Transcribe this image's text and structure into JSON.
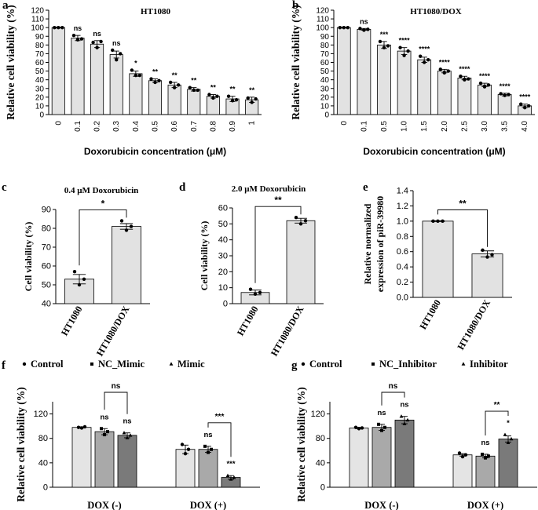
{
  "chart_data": [
    {
      "id": "a",
      "panel_label": "a",
      "type": "bar",
      "title": "HT1080",
      "xlabel": "Doxorubicin concentration (μM)",
      "ylabel": "Relative cell viability (%)",
      "ylim": [
        0,
        120
      ],
      "yticks": [
        0,
        10,
        20,
        30,
        40,
        50,
        60,
        70,
        80,
        90,
        100,
        110,
        120
      ],
      "categories": [
        "0",
        "0.1",
        "0.2",
        "0.3",
        "0.4",
        "0.5",
        "0.6",
        "0.7",
        "0.8",
        "0.9",
        "1"
      ],
      "values": [
        100,
        88,
        81,
        69,
        47,
        39,
        34,
        29,
        21,
        18,
        17
      ],
      "errors": [
        0.5,
        3,
        4,
        4,
        3,
        2,
        3,
        2,
        2,
        3,
        3
      ],
      "points": [
        [
          100,
          100,
          100
        ],
        [
          91,
          86,
          87
        ],
        [
          83,
          77,
          84
        ],
        [
          74,
          63,
          70
        ],
        [
          51,
          45,
          45
        ],
        [
          41,
          37,
          39
        ],
        [
          37,
          31,
          34
        ],
        [
          31,
          28,
          28
        ],
        [
          23,
          19,
          21
        ],
        [
          21,
          16,
          17
        ],
        [
          19,
          14,
          18
        ]
      ],
      "sig": [
        "",
        "ns",
        "ns",
        "ns",
        "*",
        "**",
        "**",
        "**",
        "**",
        "**",
        "**"
      ],
      "legend": []
    },
    {
      "id": "b",
      "panel_label": "b",
      "type": "bar",
      "title": "HT1080/DOX",
      "xlabel": "Doxorubicin concentration (μM)",
      "ylabel": "Relative cell viability (%)",
      "ylim": [
        0,
        120
      ],
      "yticks": [
        0,
        10,
        20,
        30,
        40,
        50,
        60,
        70,
        80,
        90,
        100,
        110,
        120
      ],
      "categories": [
        "0",
        "0.1",
        "0.5",
        "1.0",
        "1.5",
        "2.0",
        "2.5",
        "3.0",
        "3.5",
        "4.0"
      ],
      "values": [
        100,
        98,
        80,
        73,
        63,
        50,
        42,
        34,
        23,
        10
      ],
      "errors": [
        0.5,
        1,
        4,
        4,
        3,
        2,
        2,
        2,
        1.5,
        2
      ],
      "points": [
        [
          100,
          100,
          100
        ],
        [
          99,
          97,
          98
        ],
        [
          84,
          77,
          79
        ],
        [
          77,
          68,
          73
        ],
        [
          67,
          60,
          63
        ],
        [
          52,
          48,
          50
        ],
        [
          44,
          40,
          41
        ],
        [
          36,
          32,
          34
        ],
        [
          24,
          22,
          23
        ],
        [
          12,
          8,
          10
        ]
      ],
      "sig": [
        "",
        "ns",
        "***",
        "****",
        "****",
        "****",
        "****",
        "****",
        "****",
        "****"
      ],
      "legend": []
    },
    {
      "id": "c",
      "panel_label": "c",
      "type": "bar",
      "title": "0.4 μM Doxorubicin",
      "xlabel": "",
      "ylabel": "Cell viability (%)",
      "ylim": [
        40,
        90
      ],
      "yticks": [
        40,
        50,
        60,
        70,
        80,
        90
      ],
      "categories": [
        "HT1080",
        "HT1080/DOX"
      ],
      "values": [
        53,
        81
      ],
      "errors": [
        2.5,
        1.5
      ],
      "points": [
        [
          57,
          50,
          53
        ],
        [
          84,
          79,
          81
        ]
      ],
      "sig": [
        "",
        ""
      ],
      "brackets": [
        {
          "from": 0,
          "to": 1,
          "label": "*"
        }
      ],
      "legend": []
    },
    {
      "id": "d",
      "panel_label": "d",
      "type": "bar",
      "title": "2.0 μM Doxorubicin",
      "xlabel": "",
      "ylabel": "Cell viability (%)",
      "ylim": [
        0,
        60
      ],
      "yticks": [
        0,
        10,
        20,
        30,
        40,
        50,
        60
      ],
      "categories": [
        "HT1080",
        "HT1080/DOX"
      ],
      "values": [
        7,
        52
      ],
      "errors": [
        1.5,
        1.5
      ],
      "points": [
        [
          9,
          6,
          7
        ],
        [
          54,
          50,
          52
        ]
      ],
      "sig": [
        "",
        ""
      ],
      "brackets": [
        {
          "from": 0,
          "to": 1,
          "label": "**"
        }
      ],
      "legend": []
    },
    {
      "id": "e",
      "panel_label": "e",
      "type": "bar",
      "title": "",
      "xlabel": "",
      "ylabel": "Relative normalized expression of piR-39980",
      "ylim": [
        0,
        1.4
      ],
      "yticks": [
        "0.0",
        "0.2",
        "0.4",
        "0.6",
        "0.8",
        "1.0",
        "1.2",
        "1.4"
      ],
      "categories": [
        "HT1080",
        "HT1080/DOX"
      ],
      "values": [
        1.0,
        0.57
      ],
      "errors": [
        0.005,
        0.04
      ],
      "points": [
        [
          1.0,
          1.0,
          1.0
        ],
        [
          0.62,
          0.53,
          0.56
        ]
      ],
      "sig": [
        "",
        ""
      ],
      "brackets": [
        {
          "from": 0,
          "to": 1,
          "label": "**"
        }
      ],
      "legend": []
    },
    {
      "id": "f",
      "panel_label": "f",
      "type": "bar",
      "title": "",
      "xlabel": "",
      "ylabel": "Relative cell viability (%)",
      "ylim": [
        0,
        140
      ],
      "yticks": [
        0,
        40,
        80,
        120
      ],
      "categories": [
        "DOX (-)",
        "DOX (+)"
      ],
      "legend": [
        "Control",
        "NC_Mimic",
        "Mimic"
      ],
      "series": [
        {
          "name": "Control",
          "color": "#e4e4e4",
          "values": [
            98,
            62
          ],
          "errors": [
            1,
            7
          ],
          "points": [
            [
              98,
              97,
              99
            ],
            [
              70,
              55,
              62
            ]
          ],
          "sig": [
            "",
            ""
          ]
        },
        {
          "name": "NC_Mimic",
          "color": "#a9a9a9",
          "values": [
            91,
            62
          ],
          "errors": [
            5,
            5
          ],
          "points": [
            [
              96,
              86,
              91
            ],
            [
              67,
              57,
              62
            ]
          ],
          "sig": [
            "ns",
            "ns"
          ]
        },
        {
          "name": "Mimic",
          "color": "#7a7a7a",
          "values": [
            85,
            16
          ],
          "errors": [
            4,
            3
          ],
          "points": [
            [
              89,
              81,
              85
            ],
            [
              19,
              13,
              16
            ]
          ],
          "sig": [
            "ns",
            "***"
          ]
        }
      ],
      "brackets": [
        {
          "group": 0,
          "from": 1,
          "to": 2,
          "label": "ns"
        },
        {
          "group": 1,
          "from": 1,
          "to": 2,
          "label": "***"
        }
      ]
    },
    {
      "id": "g",
      "panel_label": "g",
      "type": "bar",
      "title": "",
      "xlabel": "",
      "ylabel": "Relative cell viability (%)",
      "ylim": [
        0,
        140
      ],
      "yticks": [
        0,
        40,
        80,
        120
      ],
      "categories": [
        "DOX (-)",
        "DOX (+)"
      ],
      "legend": [
        "Control",
        "NC_Inhibitor",
        "Inhibitor"
      ],
      "series": [
        {
          "name": "Control",
          "color": "#e4e4e4",
          "values": [
            97,
            53
          ],
          "errors": [
            1,
            2
          ],
          "points": [
            [
              98,
              96,
              97
            ],
            [
              56,
              50,
              53
            ]
          ],
          "sig": [
            "",
            ""
          ]
        },
        {
          "name": "NC_Inhibitor",
          "color": "#a9a9a9",
          "values": [
            98,
            51
          ],
          "errors": [
            5,
            3
          ],
          "points": [
            [
              103,
              93,
              98
            ],
            [
              54,
              48,
              51
            ]
          ],
          "sig": [
            "ns",
            "ns"
          ]
        },
        {
          "name": "Inhibitor",
          "color": "#7a7a7a",
          "values": [
            110,
            79
          ],
          "errors": [
            6,
            5
          ],
          "points": [
            [
              116,
              104,
              110
            ],
            [
              86,
              73,
              79
            ]
          ],
          "sig": [
            "ns",
            "*"
          ]
        }
      ],
      "brackets": [
        {
          "group": 0,
          "from": 1,
          "to": 2,
          "label": "ns"
        },
        {
          "group": 1,
          "from": 1,
          "to": 2,
          "label": "**"
        }
      ]
    }
  ]
}
